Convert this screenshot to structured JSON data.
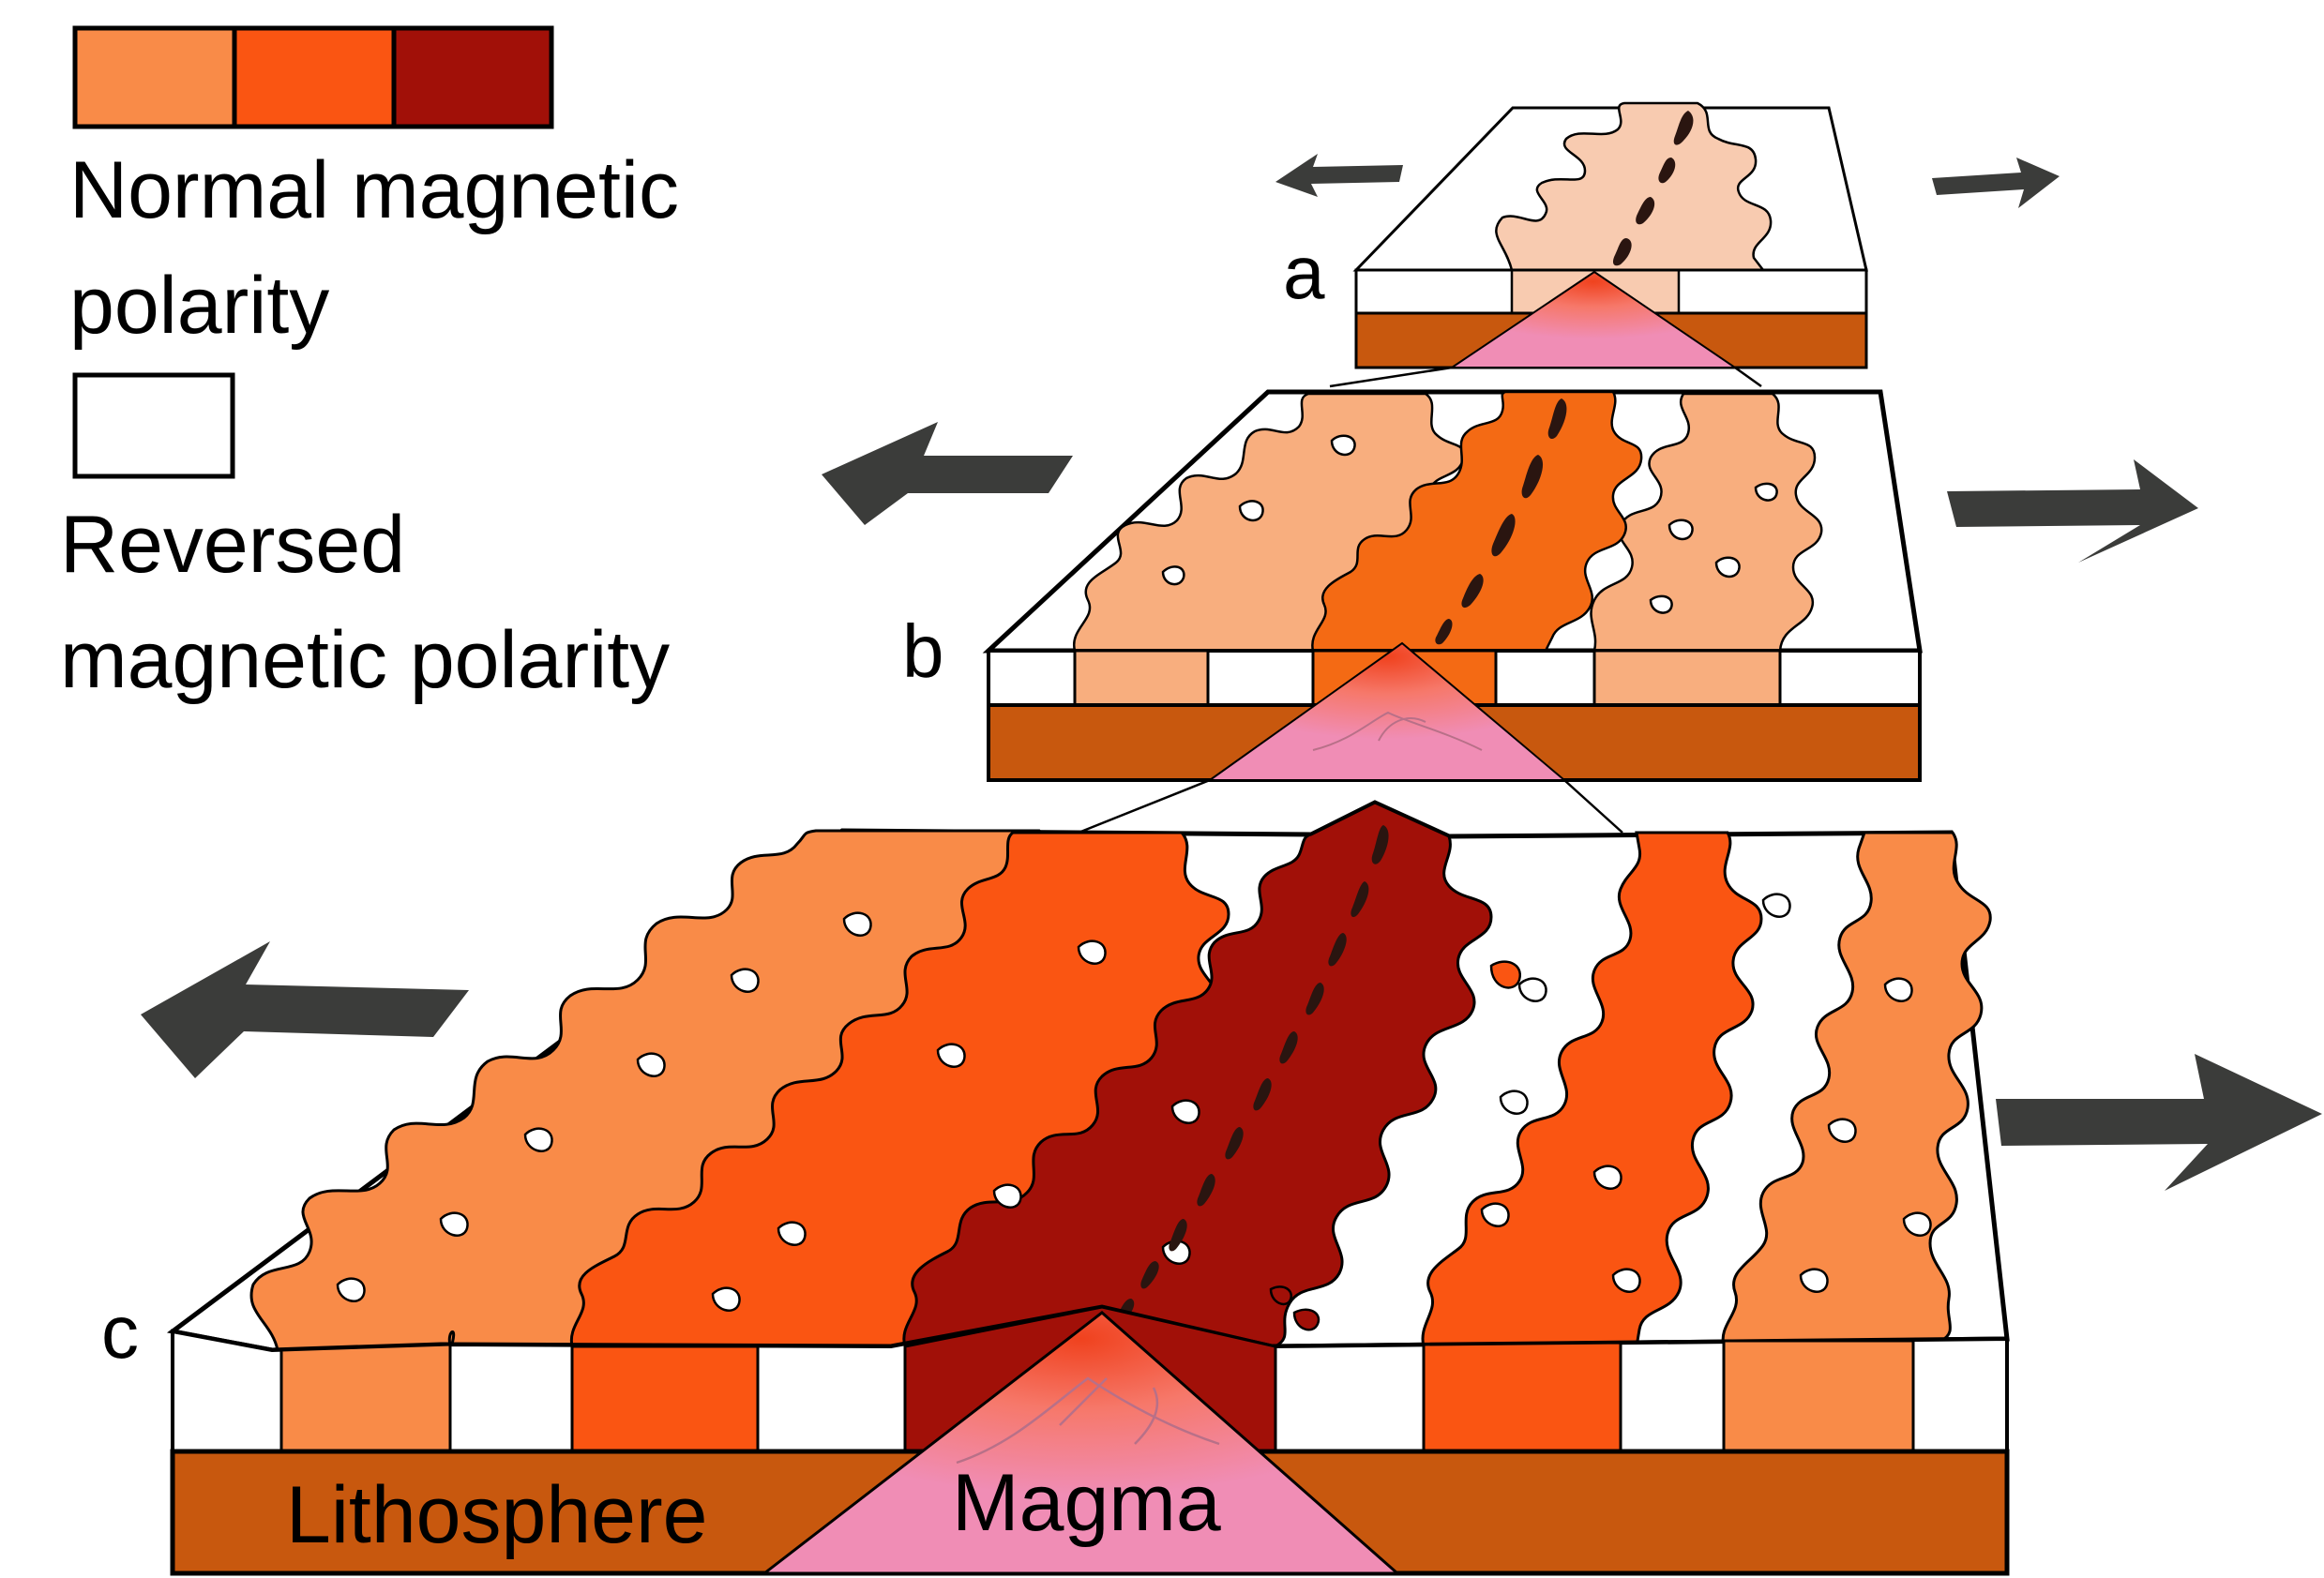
{
  "legend": {
    "normal_label": "Normal magnetic polarity",
    "normal_line1": "Normal magnetic",
    "normal_line2": "polarity",
    "reversed_label": "Reversed magnetic polarity",
    "reversed_line1": "Reversed",
    "reversed_line2": "magnetic polarity",
    "normal_swatches": [
      "#F98B48",
      "#FA5512",
      "#A11008"
    ]
  },
  "stages": [
    {
      "id": "a",
      "label": "a"
    },
    {
      "id": "b",
      "label": "b"
    },
    {
      "id": "c",
      "label": "c"
    }
  ],
  "labels": {
    "lithosphere": "Lithosphere",
    "magma": "Magma"
  },
  "colors": {
    "lithosphere": "#C8580E",
    "magma": "#F08DB5",
    "magma_core": "#F0421E",
    "normal_young": "#A11008",
    "normal_mid": "#FA5512",
    "normal_old": "#F98B48",
    "normal_stage_a": "#F8CBB0",
    "normal_stage_b_outer": "#F8AE7E",
    "normal_stage_b_center": "#F46A14",
    "reversed": "#FFFFFF",
    "arrow": "#3B3C3A",
    "fissure": "#2A1510"
  }
}
